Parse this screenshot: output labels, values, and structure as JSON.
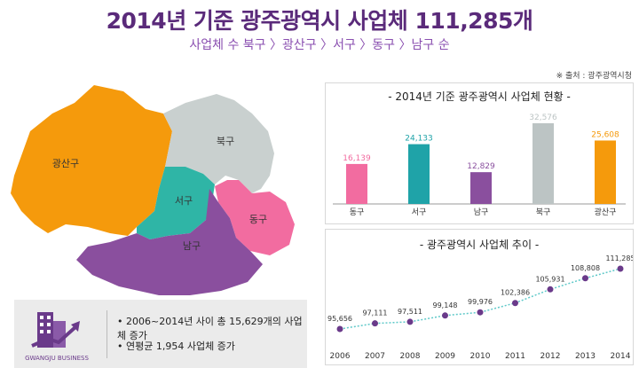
{
  "header": {
    "title": "2014년 기준 광주광역시 사업체 111,285개",
    "subtitle": "사업체 수 북구 〉광산구 〉서구 〉동구 〉남구 순",
    "source": "※ 출처 : 광주광역시청"
  },
  "map": {
    "districts": [
      {
        "name": "광산구",
        "color": "#f59a0c"
      },
      {
        "name": "북구",
        "color": "#c9d0cf"
      },
      {
        "name": "서구",
        "color": "#2fb5a6"
      },
      {
        "name": "동구",
        "color": "#f26ca0"
      },
      {
        "name": "남구",
        "color": "#8a4f9e"
      }
    ]
  },
  "info": {
    "logo_text": "GWANGJU BUSINESS",
    "line1": "• 2006~2014년 사이 총 15,629개의 사업체 증가",
    "line2": "• 연평균 1,954 사업체 증가"
  },
  "chart_data": [
    {
      "type": "bar",
      "title": "- 2014년 기준 광주광역시 사업체 현황 -",
      "categories": [
        "동구",
        "서구",
        "남구",
        "북구",
        "광산구"
      ],
      "values": [
        16139,
        24133,
        12829,
        32576,
        25608
      ],
      "value_labels": [
        "16,139",
        "24,133",
        "12,829",
        "32,576",
        "25,608"
      ],
      "colors": [
        "#f26ca0",
        "#1fa3a8",
        "#8a4f9e",
        "#bcc4c4",
        "#f59a0c"
      ],
      "ylim": [
        0,
        32576
      ]
    },
    {
      "type": "line",
      "title": "- 광주광역시 사업체 추이 -",
      "x": [
        "2006",
        "2007",
        "2008",
        "2009",
        "2010",
        "2011",
        "2012",
        "2013",
        "2014"
      ],
      "values": [
        95656,
        97111,
        97511,
        99148,
        99976,
        102386,
        105931,
        108808,
        111285
      ],
      "value_labels": [
        "95,656",
        "97,111",
        "97,511",
        "99,148",
        "99,976",
        "102,386",
        "105,931",
        "108,808",
        "111,285"
      ],
      "line_color": "#5fc9c9",
      "marker_color": "#6a3a8a"
    }
  ]
}
